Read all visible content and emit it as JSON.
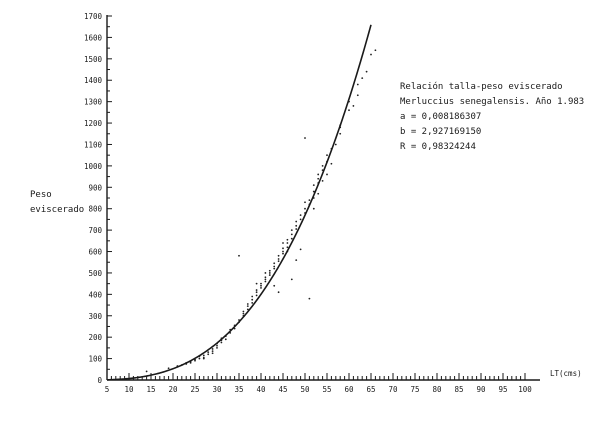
{
  "chart_data": {
    "type": "scatter",
    "ylabel_lines": [
      "Peso",
      "eviscerado"
    ],
    "xlabel": "LT(cms)",
    "annotations": {
      "title_line1": "Relación talla-peso eviscerado",
      "title_line2": "Merluccius senegalensis. Año 1.983",
      "a": "a = 0,008186307",
      "b": "b = 2,927169150",
      "r": "R = 0,98324244"
    },
    "xlim": [
      5,
      100
    ],
    "ylim": [
      0,
      1700
    ],
    "x_ticks": [
      "5",
      "10",
      "15",
      "20",
      "25",
      "30",
      "35",
      "40",
      "45",
      "50",
      "55",
      "60",
      "65",
      "70",
      "75",
      "80",
      "85",
      "90",
      "95",
      "100"
    ],
    "y_ticks": [
      "0",
      "100",
      "200",
      "300",
      "400",
      "500",
      "600",
      "700",
      "800",
      "900",
      "1000",
      "1100",
      "1200",
      "1300",
      "1400",
      "1500",
      "1600",
      "1700"
    ],
    "fit": {
      "a": 0.008186307,
      "b": 2.92716915,
      "x_range": [
        5,
        65
      ]
    },
    "points": [
      [
        14,
        40
      ],
      [
        19,
        55
      ],
      [
        21,
        65
      ],
      [
        22,
        70
      ],
      [
        23,
        75
      ],
      [
        24,
        80
      ],
      [
        25,
        90
      ],
      [
        25,
        95
      ],
      [
        26,
        100
      ],
      [
        26,
        110
      ],
      [
        27,
        115
      ],
      [
        27,
        105
      ],
      [
        28,
        120
      ],
      [
        28,
        130
      ],
      [
        29,
        135
      ],
      [
        29,
        145
      ],
      [
        30,
        150
      ],
      [
        30,
        160
      ],
      [
        30,
        170
      ],
      [
        31,
        175
      ],
      [
        31,
        185
      ],
      [
        31,
        195
      ],
      [
        32,
        190
      ],
      [
        32,
        205
      ],
      [
        33,
        220
      ],
      [
        33,
        235
      ],
      [
        34,
        240
      ],
      [
        34,
        255
      ],
      [
        35,
        270
      ],
      [
        35,
        280
      ],
      [
        35,
        580
      ],
      [
        36,
        300
      ],
      [
        36,
        310
      ],
      [
        36,
        320
      ],
      [
        37,
        330
      ],
      [
        37,
        345
      ],
      [
        37,
        355
      ],
      [
        38,
        360
      ],
      [
        38,
        375
      ],
      [
        38,
        390
      ],
      [
        39,
        395
      ],
      [
        39,
        410
      ],
      [
        39,
        420
      ],
      [
        40,
        430
      ],
      [
        40,
        440
      ],
      [
        40,
        450
      ],
      [
        41,
        460
      ],
      [
        41,
        470
      ],
      [
        41,
        480
      ],
      [
        42,
        490
      ],
      [
        42,
        500
      ],
      [
        42,
        510
      ],
      [
        43,
        520
      ],
      [
        43,
        530
      ],
      [
        43,
        545
      ],
      [
        44,
        555
      ],
      [
        44,
        565
      ],
      [
        44,
        580
      ],
      [
        45,
        590
      ],
      [
        45,
        600
      ],
      [
        45,
        615
      ],
      [
        46,
        620
      ],
      [
        46,
        640
      ],
      [
        46,
        655
      ],
      [
        47,
        660
      ],
      [
        47,
        680
      ],
      [
        47,
        700
      ],
      [
        48,
        705
      ],
      [
        48,
        720
      ],
      [
        48,
        740
      ],
      [
        49,
        750
      ],
      [
        49,
        770
      ],
      [
        50,
        780
      ],
      [
        50,
        800
      ],
      [
        51,
        820
      ],
      [
        51,
        840
      ],
      [
        52,
        850
      ],
      [
        52,
        880
      ],
      [
        52,
        910
      ],
      [
        53,
        920
      ],
      [
        53,
        940
      ],
      [
        53,
        960
      ],
      [
        54,
        980
      ],
      [
        54,
        1000
      ],
      [
        55,
        1020
      ],
      [
        55,
        1050
      ],
      [
        56,
        1080
      ],
      [
        51,
        380
      ],
      [
        50,
        1130
      ],
      [
        57,
        1100
      ],
      [
        58,
        1180
      ],
      [
        60,
        1260
      ],
      [
        61,
        1280
      ],
      [
        62,
        1380
      ],
      [
        64,
        1440
      ],
      [
        65,
        1520
      ],
      [
        66,
        1540
      ],
      [
        63,
        1410
      ],
      [
        58,
        1150
      ],
      [
        47,
        470
      ],
      [
        44,
        410
      ],
      [
        43,
        440
      ],
      [
        48,
        560
      ],
      [
        49,
        610
      ],
      [
        54,
        930
      ],
      [
        56,
        1010
      ],
      [
        29,
        125
      ],
      [
        27,
        100
      ],
      [
        24,
        85
      ],
      [
        23,
        80
      ],
      [
        39,
        450
      ],
      [
        41,
        500
      ],
      [
        45,
        640
      ],
      [
        46,
        600
      ],
      [
        52,
        800
      ],
      [
        53,
        870
      ],
      [
        55,
        960
      ],
      [
        50,
        830
      ],
      [
        58,
        1190
      ],
      [
        60,
        1300
      ],
      [
        62,
        1330
      ]
    ]
  }
}
